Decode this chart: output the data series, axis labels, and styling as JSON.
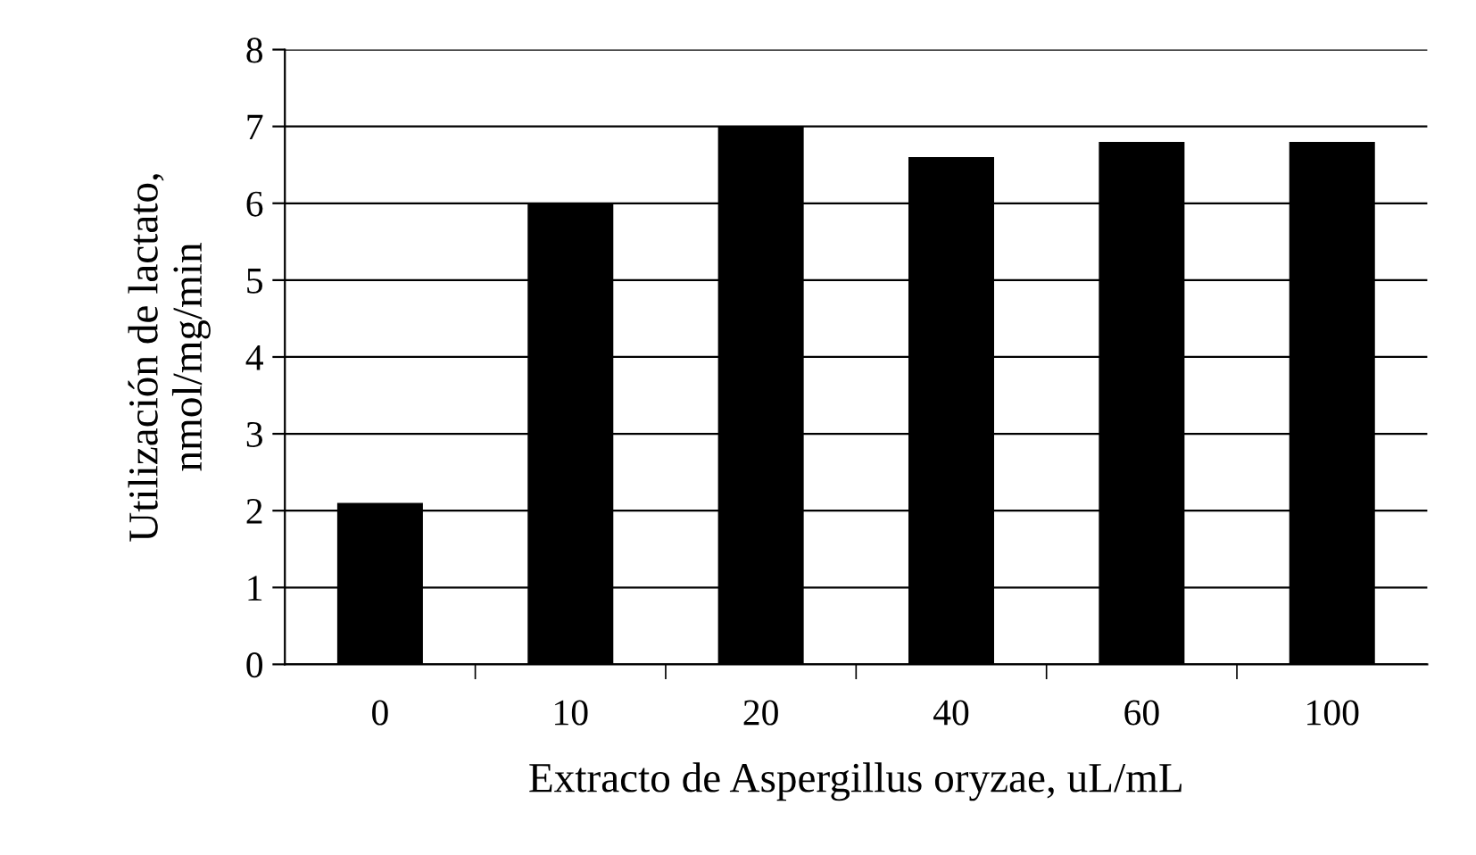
{
  "chart_data": {
    "type": "bar",
    "xlabel": "Extracto de Aspergillus oryzae, uL/mL",
    "ylabel": "Utilización de lactato,\nnmol/mg/min",
    "categories": [
      "0",
      "10",
      "20",
      "40",
      "60",
      "100"
    ],
    "values": [
      2.1,
      6.0,
      7.0,
      6.6,
      6.8,
      6.8
    ],
    "color": "#000000",
    "ylim": [
      0,
      8
    ],
    "yticks": [
      0,
      1,
      2,
      3,
      4,
      5,
      6,
      7,
      8
    ],
    "grid": "y",
    "legend": false
  }
}
